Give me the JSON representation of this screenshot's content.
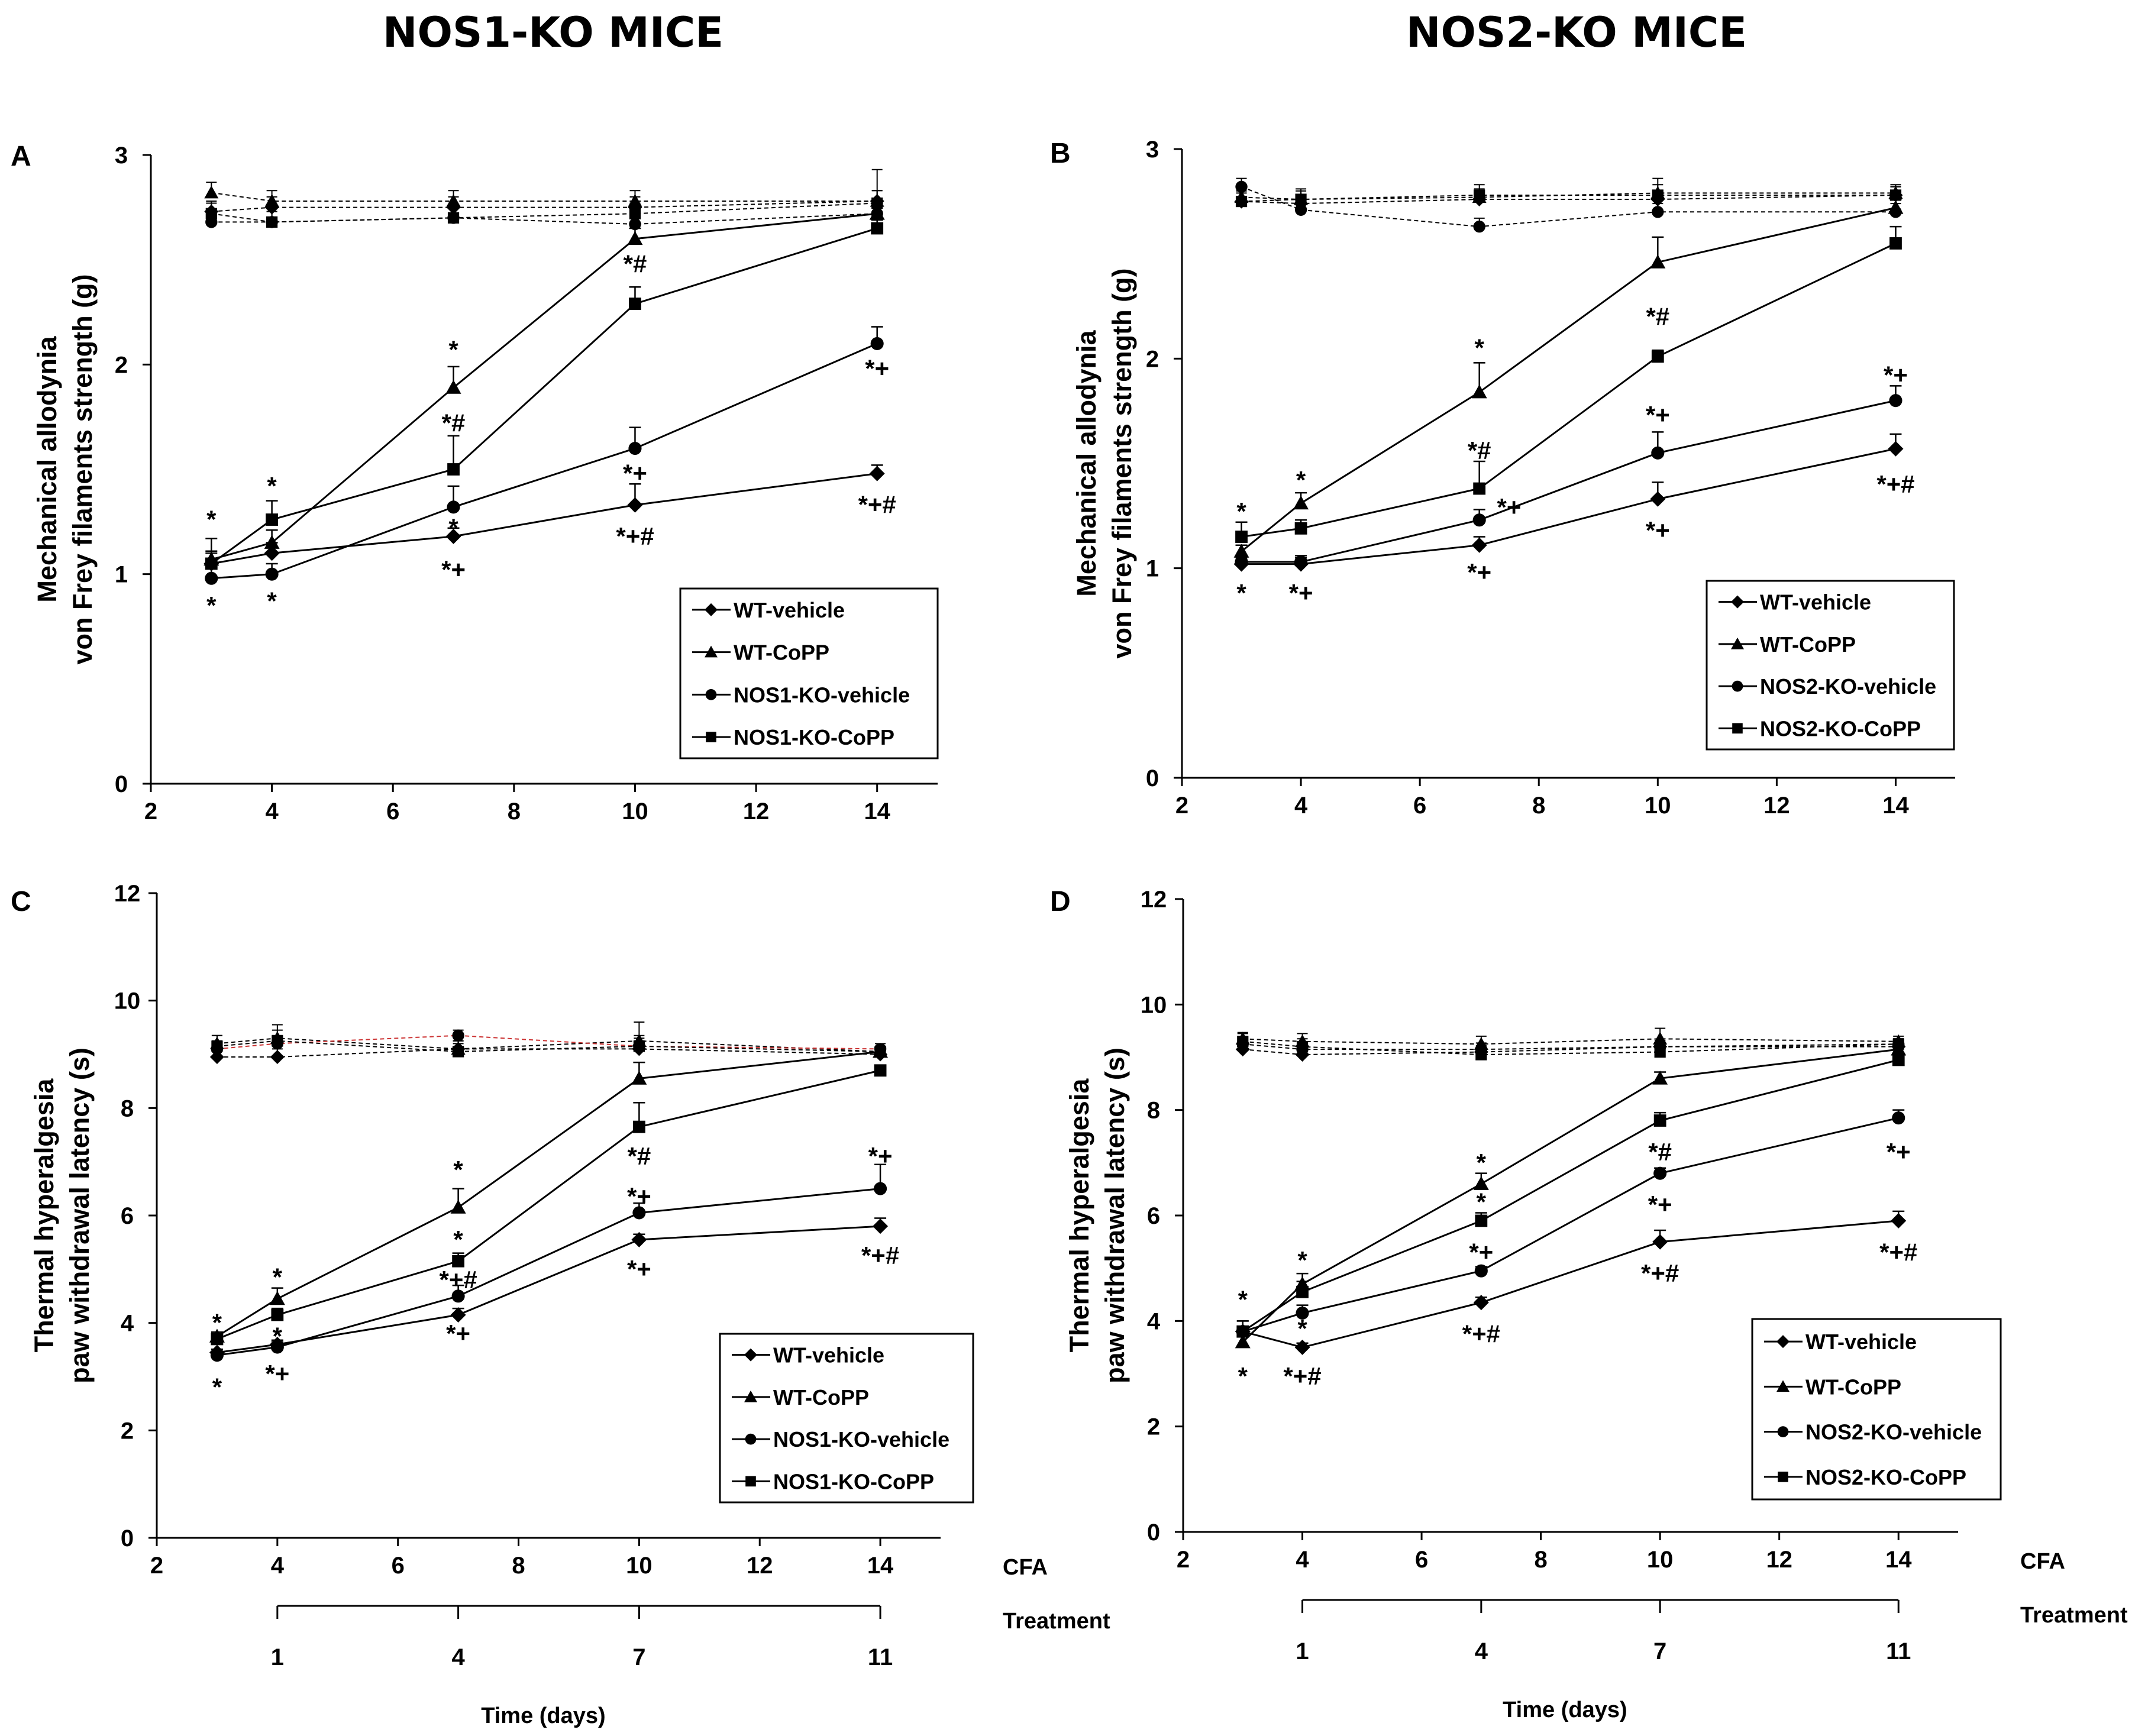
{
  "titles": {
    "left": "NOS1-KO MICE",
    "right": "NOS2-KO MICE"
  },
  "colors": {
    "ink": "#000000",
    "baseline_accent": "#cc3333"
  },
  "chart_data": [
    {
      "id": "A",
      "type": "line",
      "letter": "A",
      "xlabel": "",
      "ylabel_lines": [
        "Mechanical allodynia",
        "von Frey filaments strength (g)"
      ],
      "xlim": [
        2,
        15
      ],
      "ylim": [
        0,
        3
      ],
      "xticks": [
        2,
        4,
        6,
        8,
        10,
        12,
        14
      ],
      "yticks": [
        0,
        1,
        2,
        3
      ],
      "legend_position": "lower-right",
      "x": [
        3,
        4,
        7,
        10,
        14
      ],
      "series": [
        {
          "name": "WT-vehicle",
          "marker": "diamond",
          "values": [
            1.05,
            1.1,
            1.18,
            1.33,
            1.48
          ],
          "errors": [
            0.05,
            0.05,
            0.04,
            0.1,
            0.04
          ]
        },
        {
          "name": "WT-CoPP",
          "marker": "triangle",
          "values": [
            1.07,
            1.15,
            1.89,
            2.6,
            2.72
          ],
          "errors": [
            0.1,
            0.06,
            0.1,
            0.05,
            0.05
          ]
        },
        {
          "name": "NOS1-KO-vehicle",
          "marker": "circle",
          "values": [
            0.98,
            1.0,
            1.32,
            1.6,
            2.1
          ],
          "errors": [
            0.05,
            0.05,
            0.1,
            0.1,
            0.08
          ]
        },
        {
          "name": "NOS1-KO-CoPP",
          "marker": "square",
          "values": [
            1.05,
            1.26,
            1.5,
            2.29,
            2.65
          ],
          "errors": [
            0.06,
            0.09,
            0.16,
            0.08,
            0.04
          ]
        }
      ],
      "baseline": {
        "x": [
          3,
          4,
          7,
          10,
          14
        ],
        "series": [
          {
            "name": "WT-vehicle",
            "marker": "diamond",
            "values": [
              2.73,
              2.75,
              2.75,
              2.75,
              2.78
            ],
            "errors": [
              0.05,
              0.05,
              0.05,
              0.05,
              0.05
            ]
          },
          {
            "name": "WT-CoPP",
            "marker": "triangle",
            "values": [
              2.82,
              2.78,
              2.78,
              2.78,
              2.78
            ],
            "errors": [
              0.05,
              0.05,
              0.05,
              0.05,
              0.05
            ]
          },
          {
            "name": "NOS1-KO-vehicle",
            "marker": "circle",
            "values": [
              2.68,
              2.68,
              2.7,
              2.67,
              2.72
            ],
            "errors": [
              0.05,
              0.05,
              0.05,
              0.05,
              0.05
            ]
          },
          {
            "name": "NOS1-KO-CoPP",
            "marker": "square",
            "values": [
              2.72,
              2.68,
              2.7,
              2.72,
              2.77
            ],
            "errors": [
              0.05,
              0.05,
              0.05,
              0.05,
              0.16
            ]
          }
        ]
      },
      "annotations": [
        {
          "text": "*",
          "x": 3,
          "y": 1.26
        },
        {
          "text": "*",
          "x": 3,
          "y": 0.85
        },
        {
          "text": "*",
          "x": 4,
          "y": 1.42
        },
        {
          "text": "*",
          "x": 4,
          "y": 0.87
        },
        {
          "text": "*",
          "x": 7,
          "y": 2.07
        },
        {
          "text": "*#",
          "x": 7,
          "y": 1.72
        },
        {
          "text": "*",
          "x": 7,
          "y": 1.22
        },
        {
          "text": "*+",
          "x": 7,
          "y": 1.02
        },
        {
          "text": "*#",
          "x": 10,
          "y": 2.48
        },
        {
          "text": "*+",
          "x": 10,
          "y": 1.48
        },
        {
          "text": "*+#",
          "x": 10,
          "y": 1.18
        },
        {
          "text": "*+",
          "x": 14,
          "y": 1.98
        },
        {
          "text": "*+#",
          "x": 14,
          "y": 1.33
        }
      ]
    },
    {
      "id": "B",
      "type": "line",
      "letter": "B",
      "xlabel": "",
      "ylabel_lines": [
        "Mechanical allodynia",
        "von Frey filaments strength (g)"
      ],
      "xlim": [
        2,
        15
      ],
      "ylim": [
        0,
        3
      ],
      "xticks": [
        2,
        4,
        6,
        8,
        10,
        12,
        14
      ],
      "yticks": [
        0,
        1,
        2,
        3
      ],
      "legend_position": "lower-right",
      "x": [
        3,
        4,
        7,
        10,
        14
      ],
      "series": [
        {
          "name": "WT-vehicle",
          "marker": "diamond",
          "values": [
            1.02,
            1.02,
            1.11,
            1.33,
            1.57
          ],
          "errors": [
            0.03,
            0.03,
            0.04,
            0.08,
            0.07
          ]
        },
        {
          "name": "WT-CoPP",
          "marker": "triangle",
          "values": [
            1.08,
            1.31,
            1.84,
            2.46,
            2.72
          ],
          "errors": [
            0.03,
            0.05,
            0.14,
            0.12,
            0.04
          ]
        },
        {
          "name": "NOS2-KO-vehicle",
          "marker": "circle",
          "values": [
            1.03,
            1.03,
            1.23,
            1.55,
            1.8
          ],
          "errors": [
            0.03,
            0.03,
            0.05,
            0.1,
            0.07
          ]
        },
        {
          "name": "NOS2-KO-CoPP",
          "marker": "square",
          "values": [
            1.15,
            1.19,
            1.38,
            2.01,
            2.55
          ],
          "errors": [
            0.07,
            0.04,
            0.13,
            0.03,
            0.08
          ]
        }
      ],
      "baseline": {
        "x": [
          3,
          4,
          7,
          10,
          14
        ],
        "series": [
          {
            "name": "WT-vehicle",
            "marker": "diamond",
            "values": [
              2.75,
              2.74,
              2.76,
              2.76,
              2.78
            ],
            "errors": [
              0.04,
              0.04,
              0.04,
              0.04,
              0.04
            ]
          },
          {
            "name": "WT-CoPP",
            "marker": "triangle",
            "values": [
              2.77,
              2.76,
              2.77,
              2.79,
              2.79
            ],
            "errors": [
              0.04,
              0.04,
              0.04,
              0.04,
              0.04
            ]
          },
          {
            "name": "NOS2-KO-vehicle",
            "marker": "circle",
            "values": [
              2.82,
              2.71,
              2.63,
              2.7,
              2.7
            ],
            "errors": [
              0.04,
              0.04,
              0.04,
              0.04,
              0.04
            ]
          },
          {
            "name": "NOS2-KO-CoPP",
            "marker": "square",
            "values": [
              2.75,
              2.76,
              2.78,
              2.78,
              2.78
            ],
            "errors": [
              0.05,
              0.05,
              0.05,
              0.08,
              0.04
            ]
          }
        ]
      },
      "annotations": [
        {
          "text": "*",
          "x": 3,
          "y": 1.27
        },
        {
          "text": "*",
          "x": 3,
          "y": 0.88
        },
        {
          "text": "*",
          "x": 4,
          "y": 1.42
        },
        {
          "text": "*+",
          "x": 4,
          "y": 0.88
        },
        {
          "text": "*",
          "x": 7,
          "y": 2.05
        },
        {
          "text": "*#",
          "x": 7,
          "y": 1.56
        },
        {
          "text": "*+",
          "x": 7.5,
          "y": 1.29
        },
        {
          "text": "*+",
          "x": 7,
          "y": 0.98
        },
        {
          "text": "*#",
          "x": 10,
          "y": 2.2
        },
        {
          "text": "*+",
          "x": 10,
          "y": 1.73
        },
        {
          "text": "*+",
          "x": 10,
          "y": 1.18
        },
        {
          "text": "*+",
          "x": 14,
          "y": 1.92
        },
        {
          "text": "*+#",
          "x": 14,
          "y": 1.4
        }
      ]
    },
    {
      "id": "C",
      "type": "line",
      "letter": "C",
      "xlabel": "Time (days)",
      "ylabel_lines": [
        "Thermal hyperalgesia",
        "paw withdrawal latency (s)"
      ],
      "xlim": [
        2,
        15
      ],
      "ylim": [
        0,
        12
      ],
      "xticks": [
        2,
        4,
        6,
        8,
        10,
        12,
        14
      ],
      "yticks": [
        0,
        2,
        4,
        6,
        8,
        10,
        12
      ],
      "legend_position": "lower-right",
      "cfa_label": "CFA",
      "treatment_label": "Treatment",
      "treatment_ticks": [
        {
          "x": 4,
          "label": "1"
        },
        {
          "x": 7,
          "label": "4"
        },
        {
          "x": 10,
          "label": "7"
        },
        {
          "x": 14,
          "label": "11"
        }
      ],
      "x": [
        3,
        4,
        7,
        10,
        14
      ],
      "series": [
        {
          "name": "WT-vehicle",
          "marker": "diamond",
          "values": [
            3.45,
            3.6,
            4.15,
            5.55,
            5.8
          ],
          "errors": [
            0.06,
            0.08,
            0.12,
            0.1,
            0.15
          ]
        },
        {
          "name": "WT-CoPP",
          "marker": "triangle",
          "values": [
            3.75,
            4.45,
            6.15,
            8.55,
            9.05
          ],
          "errors": [
            0.08,
            0.2,
            0.35,
            0.3,
            0.08
          ]
        },
        {
          "name": "NOS1-KO-vehicle",
          "marker": "circle",
          "values": [
            3.4,
            3.55,
            4.5,
            6.05,
            6.5
          ],
          "errors": [
            0.06,
            0.1,
            0.2,
            0.18,
            0.45
          ]
        },
        {
          "name": "NOS1-KO-CoPP",
          "marker": "square",
          "values": [
            3.7,
            4.15,
            5.15,
            7.65,
            8.7
          ],
          "errors": [
            0.08,
            0.12,
            0.15,
            0.45,
            0.08
          ]
        }
      ],
      "baseline": {
        "x": [
          3,
          4,
          7,
          10,
          14
        ],
        "series": [
          {
            "name": "WT-vehicle",
            "marker": "diamond",
            "values": [
              8.95,
              8.95,
              9.1,
              9.1,
              9.0
            ],
            "errors": [
              0.15,
              0.15,
              0.15,
              0.15,
              0.1
            ]
          },
          {
            "name": "WT-CoPP",
            "marker": "triangle",
            "values": [
              9.2,
              9.3,
              9.1,
              9.25,
              9.05
            ],
            "errors": [
              0.15,
              0.25,
              0.15,
              0.35,
              0.1
            ]
          },
          {
            "name": "NOS1-KO-vehicle",
            "marker": "circle",
            "values": [
              9.1,
              9.2,
              9.35,
              9.15,
              9.1
            ],
            "errors": [
              0.15,
              0.15,
              0.1,
              0.15,
              0.1
            ]
          },
          {
            "name": "NOS1-KO-CoPP",
            "marker": "square",
            "values": [
              9.15,
              9.25,
              9.05,
              9.15,
              9.05
            ],
            "errors": [
              0.2,
              0.2,
              0.15,
              0.2,
              0.1
            ]
          }
        ]
      },
      "annotations": [
        {
          "text": "*",
          "x": 3,
          "y": 4.0
        },
        {
          "text": "*",
          "x": 3,
          "y": 2.8
        },
        {
          "text": "*",
          "x": 4,
          "y": 4.85
        },
        {
          "text": "*",
          "x": 4,
          "y": 3.75
        },
        {
          "text": "*+",
          "x": 4,
          "y": 3.05
        },
        {
          "text": "*",
          "x": 7,
          "y": 6.85
        },
        {
          "text": "*",
          "x": 7,
          "y": 5.55
        },
        {
          "text": "*+#",
          "x": 7,
          "y": 4.8
        },
        {
          "text": "*+",
          "x": 7,
          "y": 3.8
        },
        {
          "text": "*#",
          "x": 10,
          "y": 7.1
        },
        {
          "text": "*+",
          "x": 10,
          "y": 6.35
        },
        {
          "text": "*+",
          "x": 10,
          "y": 5.0
        },
        {
          "text": "*+",
          "x": 14,
          "y": 7.1
        },
        {
          "text": "*+#",
          "x": 14,
          "y": 5.25
        }
      ]
    },
    {
      "id": "D",
      "type": "line",
      "letter": "D",
      "xlabel": "Time (days)",
      "ylabel_lines": [
        "Thermal hyperalgesia",
        "paw withdrawal latency (s)"
      ],
      "xlim": [
        2,
        15
      ],
      "ylim": [
        0,
        12
      ],
      "xticks": [
        2,
        4,
        6,
        8,
        10,
        12,
        14
      ],
      "yticks": [
        0,
        2,
        4,
        6,
        8,
        10,
        12
      ],
      "legend_position": "lower-right",
      "cfa_label": "CFA",
      "treatment_label": "Treatment",
      "treatment_ticks": [
        {
          "x": 4,
          "label": "1"
        },
        {
          "x": 7,
          "label": "4"
        },
        {
          "x": 10,
          "label": "7"
        },
        {
          "x": 14,
          "label": "11"
        }
      ],
      "x": [
        3,
        4,
        7,
        10,
        14
      ],
      "series": [
        {
          "name": "WT-vehicle",
          "marker": "diamond",
          "values": [
            3.8,
            3.5,
            4.35,
            5.5,
            5.9
          ],
          "errors": [
            0.1,
            0.08,
            0.1,
            0.22,
            0.18
          ]
        },
        {
          "name": "WT-CoPP",
          "marker": "triangle",
          "values": [
            3.6,
            4.7,
            6.6,
            8.6,
            9.15
          ],
          "errors": [
            0.2,
            0.2,
            0.2,
            0.12,
            0.08
          ]
        },
        {
          "name": "NOS2-KO-vehicle",
          "marker": "circle",
          "values": [
            3.8,
            4.15,
            4.95,
            6.8,
            7.85
          ],
          "errors": [
            0.2,
            0.15,
            0.08,
            0.1,
            0.15
          ]
        },
        {
          "name": "NOS2-KO-CoPP",
          "marker": "square",
          "values": [
            3.8,
            4.55,
            5.9,
            7.8,
            8.95
          ],
          "errors": [
            0.2,
            0.2,
            0.15,
            0.15,
            0.08
          ]
        }
      ],
      "baseline": {
        "x": [
          3,
          4,
          7,
          10,
          14
        ],
        "series": [
          {
            "name": "WT-vehicle",
            "marker": "diamond",
            "values": [
              9.15,
              9.05,
              9.1,
              9.2,
              9.2
            ],
            "errors": [
              0.12,
              0.12,
              0.12,
              0.12,
              0.1
            ]
          },
          {
            "name": "WT-CoPP",
            "marker": "triangle",
            "values": [
              9.35,
              9.3,
              9.25,
              9.35,
              9.3
            ],
            "errors": [
              0.12,
              0.15,
              0.15,
              0.2,
              0.1
            ]
          },
          {
            "name": "NOS2-KO-vehicle",
            "marker": "circle",
            "values": [
              9.25,
              9.15,
              9.15,
              9.2,
              9.25
            ],
            "errors": [
              0.12,
              0.12,
              0.12,
              0.12,
              0.1
            ]
          },
          {
            "name": "NOS2-KO-CoPP",
            "marker": "square",
            "values": [
              9.3,
              9.2,
              9.05,
              9.1,
              9.25
            ],
            "errors": [
              0.15,
              0.15,
              0.15,
              0.15,
              0.1
            ]
          }
        ]
      },
      "annotations": [
        {
          "text": "*",
          "x": 3,
          "y": 4.4
        },
        {
          "text": "*",
          "x": 3,
          "y": 2.95
        },
        {
          "text": "*",
          "x": 4,
          "y": 5.15
        },
        {
          "text": "*",
          "x": 4,
          "y": 3.85
        },
        {
          "text": "*+#",
          "x": 4,
          "y": 2.95
        },
        {
          "text": "*",
          "x": 7,
          "y": 7.0
        },
        {
          "text": "*",
          "x": 7,
          "y": 6.25
        },
        {
          "text": "*+",
          "x": 7,
          "y": 5.3
        },
        {
          "text": "*+#",
          "x": 7,
          "y": 3.75
        },
        {
          "text": "*#",
          "x": 10,
          "y": 7.2
        },
        {
          "text": "*+",
          "x": 10,
          "y": 6.2
        },
        {
          "text": "*+#",
          "x": 10,
          "y": 4.9
        },
        {
          "text": "*+",
          "x": 14,
          "y": 7.2
        },
        {
          "text": "*+#",
          "x": 14,
          "y": 5.3
        }
      ]
    }
  ]
}
